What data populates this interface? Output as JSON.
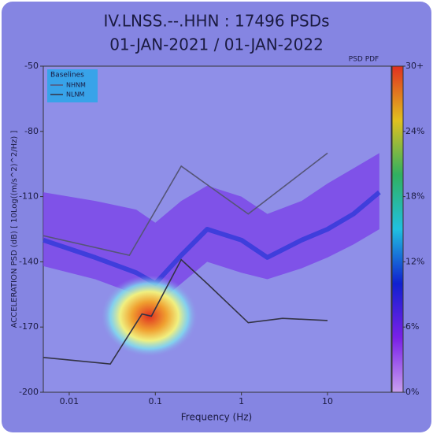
{
  "chart_data": {
    "type": "psd_pdf",
    "title": "IV.LNSS.--.HHN : 17496 PSDs",
    "subtitle": "01-JAN-2021 / 01-JAN-2022",
    "x_label": "Frequency (Hz)",
    "y_label": "ACCELERATION PSD (dB) [ 10Log((m/s^2)^2/Hz) ]",
    "x_log": true,
    "xlim": [
      0.005,
      55
    ],
    "xticks": [
      0.01,
      0.1,
      1,
      10
    ],
    "ylim": [
      -200,
      -50
    ],
    "yticks": [
      -200,
      -170,
      -140,
      -110,
      -80,
      -50
    ],
    "legend_title": "Baselines",
    "legend_position": "upper-left",
    "series": [
      {
        "name": "NHNM",
        "color": "#555577",
        "x": [
          0.005,
          0.05,
          0.2,
          1.2,
          10
        ],
        "y": [
          -128,
          -137,
          -96,
          -118,
          -90
        ]
      },
      {
        "name": "NLNM",
        "color": "#333344",
        "x": [
          0.005,
          0.03,
          0.07,
          0.09,
          0.2,
          0.4,
          1.2,
          3,
          10
        ],
        "y": [
          -184,
          -187,
          -164,
          -165,
          -139,
          -150,
          -168,
          -166,
          -167
        ]
      }
    ],
    "pdf_band": {
      "color": "#7a3de8",
      "mode_color": "#2f3ad8",
      "x": [
        0.005,
        0.02,
        0.06,
        0.1,
        0.2,
        0.4,
        1,
        2,
        5,
        10,
        20,
        40
      ],
      "high": [
        -108,
        -112,
        -116,
        -122,
        -112,
        -105,
        -110,
        -118,
        -112,
        -104,
        -97,
        -90
      ],
      "low": [
        -142,
        -148,
        -155,
        -160,
        -150,
        -140,
        -145,
        -148,
        -143,
        -138,
        -132,
        -125
      ],
      "mode": [
        -130,
        -138,
        -145,
        -150,
        -137,
        -125,
        -130,
        -138,
        -130,
        -125,
        -118,
        -108
      ]
    },
    "hotspot": {
      "x": 0.085,
      "y": -165
    },
    "colorbar": {
      "label": "PSD PDF",
      "lim": [
        0,
        30
      ],
      "colors": [
        "#c8a0f0",
        "#7a20e8",
        "#1020d0",
        "#20c0e0",
        "#30b060",
        "#e0c020",
        "#e03020"
      ],
      "ticks": [
        {
          "value": 0,
          "label": "0%"
        },
        {
          "value": 6,
          "label": "6%"
        },
        {
          "value": 12,
          "label": "12%"
        },
        {
          "value": 18,
          "label": "18%"
        },
        {
          "value": 24,
          "label": "24%"
        },
        {
          "value": 30,
          "label": "30+"
        }
      ]
    }
  }
}
